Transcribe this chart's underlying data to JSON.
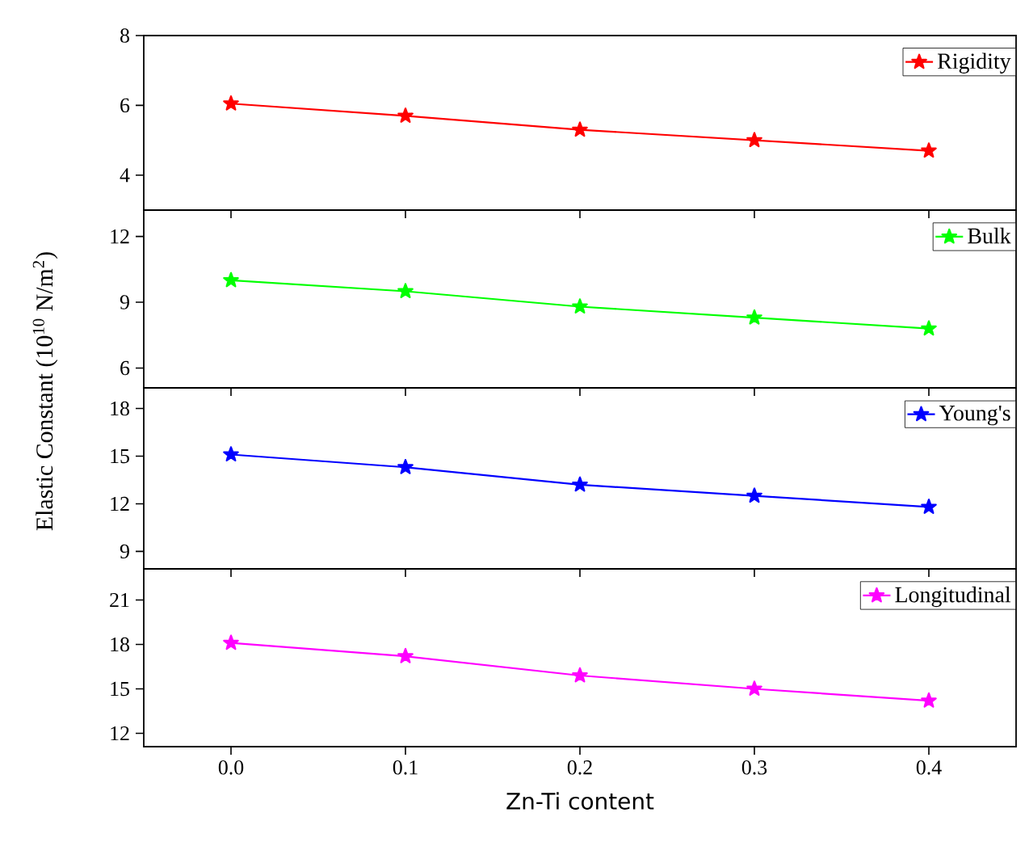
{
  "chart_data": [
    {
      "type": "line",
      "ylabel": "Elastic Constant (10$^{10}$ N/m$^{2}$)",
      "x": [
        0,
        0.1,
        0.2,
        0.3,
        0.4
      ],
      "series": [
        {
          "name": "Rigidity",
          "color": "#ff0000",
          "values": [
            6.05,
            5.7,
            5.3,
            5.0,
            4.7
          ]
        }
      ],
      "xlim": [
        -0.05,
        0.45
      ],
      "xticks": [
        0,
        0.1,
        0.2,
        0.3,
        0.4
      ],
      "ylim": [
        3,
        8
      ],
      "yticks": [
        4,
        6,
        8
      ],
      "marker": "star",
      "legend": "top right",
      "tick_labels": "y"
    },
    {
      "type": "line",
      "x": [
        0,
        0.1,
        0.2,
        0.3,
        0.4
      ],
      "series": [
        {
          "name": "Bulk",
          "color": "#00ff00",
          "values": [
            10.0,
            9.5,
            8.8,
            8.3,
            7.8
          ]
        }
      ],
      "xlim": [
        -0.05,
        0.45
      ],
      "xticks": [
        0,
        0.1,
        0.2,
        0.3,
        0.4
      ],
      "ylim": [
        5.1,
        13.2
      ],
      "yticks": [
        6,
        9,
        12
      ],
      "marker": "star",
      "legend": "top right",
      "tick_labels": "y"
    },
    {
      "type": "line",
      "x": [
        0,
        0.1,
        0.2,
        0.3,
        0.4
      ],
      "series": [
        {
          "name": "Young's",
          "color": "#0000ff",
          "values": [
            15.1,
            14.3,
            13.2,
            12.5,
            11.8
          ]
        }
      ],
      "xlim": [
        -0.05,
        0.45
      ],
      "xticks": [
        0,
        0.1,
        0.2,
        0.3,
        0.4
      ],
      "ylim": [
        7.9,
        19.3
      ],
      "yticks": [
        9,
        12,
        15,
        18
      ],
      "marker": "star",
      "legend": "top right",
      "tick_labels": "y"
    },
    {
      "type": "line",
      "xlabel": "Zn-Ti content",
      "x": [
        0,
        0.1,
        0.2,
        0.3,
        0.4
      ],
      "series": [
        {
          "name": "Longitudinal",
          "color": "#ff00ff",
          "values": [
            18.1,
            17.2,
            15.9,
            15.0,
            14.2
          ]
        }
      ],
      "xlim": [
        -0.05,
        0.45
      ],
      "xticks": [
        {
          "value": 0,
          "label": "0.0"
        },
        0.1,
        0.2,
        0.3,
        0.4
      ],
      "ylim": [
        11.1,
        23.1
      ],
      "yticks": [
        12,
        15,
        18,
        21
      ],
      "marker": "star",
      "legend": "top right"
    }
  ]
}
